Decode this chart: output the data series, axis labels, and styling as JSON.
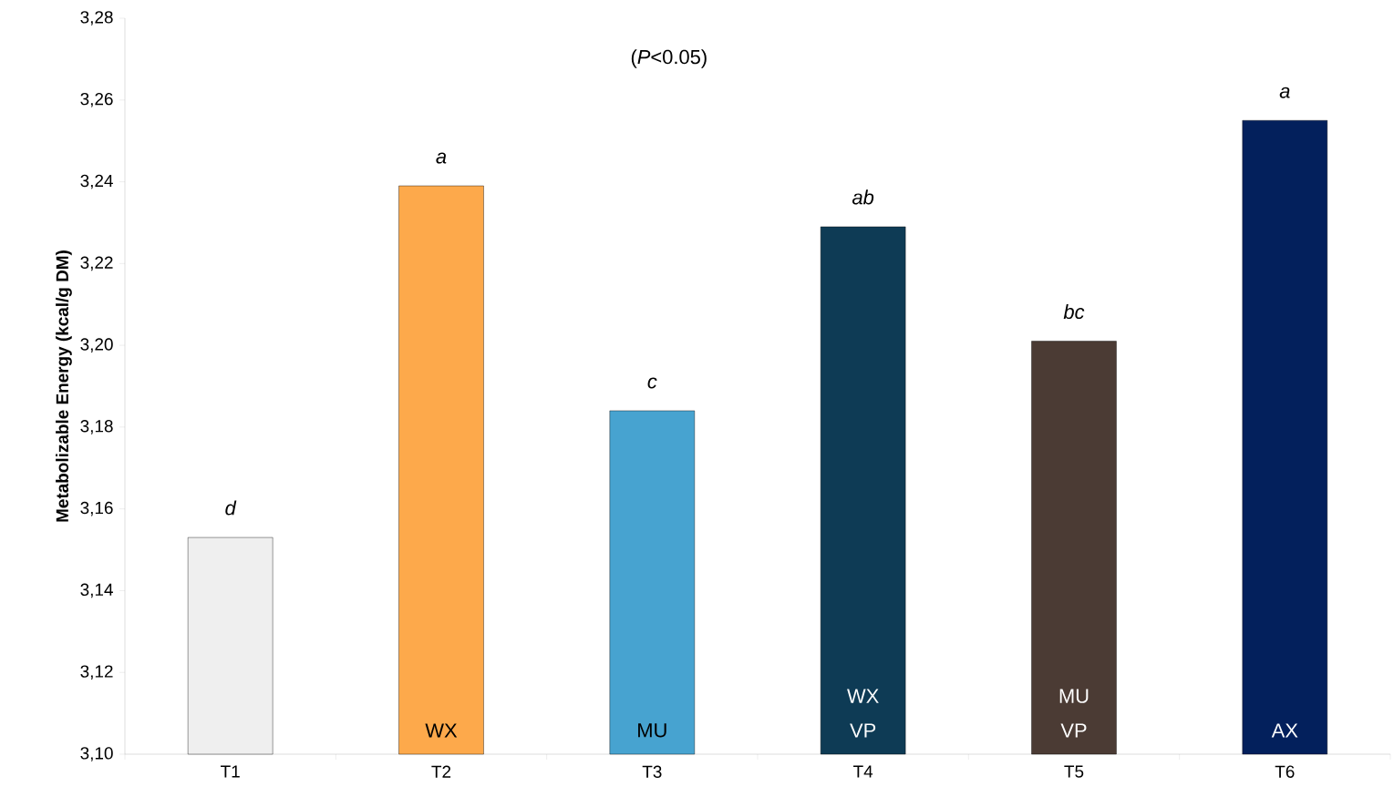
{
  "chart_data": {
    "type": "bar",
    "ylabel": "Metabolizable Energy (kcal/g DM)",
    "categories": [
      "T1",
      "T2",
      "T3",
      "T4",
      "T5",
      "T6"
    ],
    "values": [
      3.153,
      3.239,
      3.184,
      3.229,
      3.201,
      3.255
    ],
    "value_labels": [
      "d",
      "a",
      "c",
      "ab",
      "bc",
      "a"
    ],
    "colors": [
      "#efefef",
      "#fda94b",
      "#47a3d0",
      "#0e3b55",
      "#4b3b34",
      "#03205c"
    ],
    "ylim": [
      3.1,
      3.28
    ],
    "yticks": [
      {
        "value": 3.1,
        "label": "3,10"
      },
      {
        "value": 3.12,
        "label": "3,12"
      },
      {
        "value": 3.14,
        "label": "3,14"
      },
      {
        "value": 3.16,
        "label": "3,16"
      },
      {
        "value": 3.18,
        "label": "3,18"
      },
      {
        "value": 3.2,
        "label": "3,20"
      },
      {
        "value": 3.22,
        "label": "3,22"
      },
      {
        "value": 3.24,
        "label": "3,24"
      },
      {
        "value": 3.26,
        "label": "3,26"
      },
      {
        "value": 3.28,
        "label": "3,28"
      }
    ],
    "grid": false,
    "annotations": [
      "(*P*<0.05)",
      "WX",
      "MU",
      "WX VP",
      "MU VP",
      "AX"
    ]
  }
}
